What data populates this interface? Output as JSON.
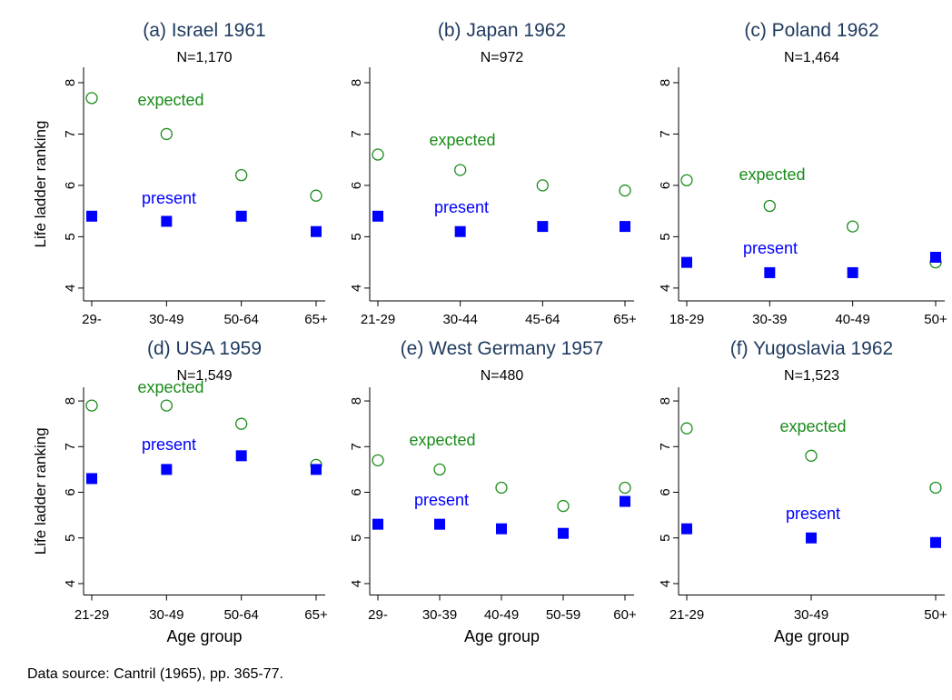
{
  "chart_data": [
    {
      "type": "scatter",
      "title": "(a) Israel 1961",
      "subtitle": "N=1,170",
      "y_label": "Life ladder ranking",
      "categories": [
        "29-",
        "30-49",
        "50-64",
        "65+"
      ],
      "ylim": [
        3.75,
        8.3
      ],
      "yticks": [
        4,
        5,
        6,
        7,
        8
      ],
      "series": [
        {
          "name": "expected",
          "color": "#1a8c1a",
          "marker": "circle",
          "values": [
            7.7,
            7.0,
            6.2,
            5.8
          ]
        },
        {
          "name": "present",
          "color": "#0000ff",
          "marker": "square",
          "values": [
            5.4,
            5.3,
            5.4,
            5.1
          ]
        }
      ]
    },
    {
      "type": "scatter",
      "title": "(b) Japan 1962",
      "subtitle": "N=972",
      "categories": [
        "21-29",
        "30-44",
        "45-64",
        "65+"
      ],
      "ylim": [
        3.75,
        8.3
      ],
      "yticks": [
        4,
        5,
        6,
        7,
        8
      ],
      "series": [
        {
          "name": "expected",
          "color": "#1a8c1a",
          "marker": "circle",
          "values": [
            6.6,
            6.3,
            6.0,
            5.9
          ]
        },
        {
          "name": "present",
          "color": "#0000ff",
          "marker": "square",
          "values": [
            5.4,
            5.1,
            5.2,
            5.2
          ]
        }
      ]
    },
    {
      "type": "scatter",
      "title": "(c) Poland 1962",
      "subtitle": "N=1,464",
      "categories": [
        "18-29",
        "30-39",
        "40-49",
        "50+"
      ],
      "ylim": [
        3.75,
        8.3
      ],
      "yticks": [
        4,
        5,
        6,
        7,
        8
      ],
      "series": [
        {
          "name": "expected",
          "color": "#1a8c1a",
          "marker": "circle",
          "values": [
            6.1,
            5.6,
            5.2,
            4.5
          ]
        },
        {
          "name": "present",
          "color": "#0000ff",
          "marker": "square",
          "values": [
            4.5,
            4.3,
            4.3,
            4.6
          ]
        }
      ]
    },
    {
      "type": "scatter",
      "title": "(d) USA 1959",
      "subtitle": "N=1,549",
      "y_label": "Life ladder ranking",
      "x_label": "Age group",
      "categories": [
        "21-29",
        "30-49",
        "50-64",
        "65+"
      ],
      "ylim": [
        3.75,
        8.3
      ],
      "yticks": [
        4,
        5,
        6,
        7,
        8
      ],
      "series": [
        {
          "name": "expected",
          "color": "#1a8c1a",
          "marker": "circle",
          "values": [
            7.9,
            7.9,
            7.5,
            6.6
          ]
        },
        {
          "name": "present",
          "color": "#0000ff",
          "marker": "square",
          "values": [
            6.3,
            6.5,
            6.8,
            6.5
          ]
        }
      ]
    },
    {
      "type": "scatter",
      "title": "(e) West Germany 1957",
      "subtitle": "N=480",
      "x_label": "Age group",
      "categories": [
        "29-",
        "30-39",
        "40-49",
        "50-59",
        "60+"
      ],
      "ylim": [
        3.75,
        8.3
      ],
      "yticks": [
        4,
        5,
        6,
        7,
        8
      ],
      "series": [
        {
          "name": "expected",
          "color": "#1a8c1a",
          "marker": "circle",
          "values": [
            6.7,
            6.5,
            6.1,
            5.7,
            6.1
          ]
        },
        {
          "name": "present",
          "color": "#0000ff",
          "marker": "square",
          "values": [
            5.3,
            5.3,
            5.2,
            5.1,
            5.8
          ]
        }
      ]
    },
    {
      "type": "scatter",
      "title": "(f) Yugoslavia 1962",
      "subtitle": "N=1,523",
      "x_label": "Age group",
      "categories": [
        "21-29",
        "30-49",
        "50+"
      ],
      "ylim": [
        3.75,
        8.3
      ],
      "yticks": [
        4,
        5,
        6,
        7,
        8
      ],
      "series": [
        {
          "name": "expected",
          "color": "#1a8c1a",
          "marker": "circle",
          "values": [
            7.4,
            6.8,
            6.1
          ]
        },
        {
          "name": "present",
          "color": "#0000ff",
          "marker": "square",
          "values": [
            5.2,
            5.0,
            4.9
          ]
        }
      ]
    }
  ],
  "source": "Data source: Cantril (1965), pp. 365-77."
}
